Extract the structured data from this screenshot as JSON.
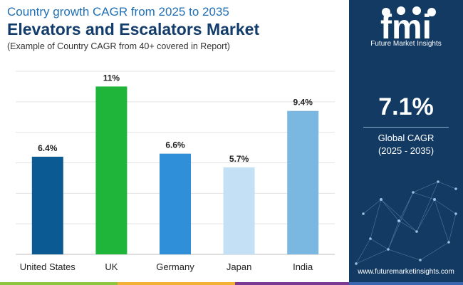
{
  "header": {
    "line1": "Country growth CAGR from 2025 to 2035",
    "line2": "Elevators and Escalators Market",
    "line3": "(Example of Country CAGR from 40+ covered in Report)"
  },
  "chart_data": {
    "type": "bar",
    "categories": [
      "United States",
      "UK",
      "Germany",
      "Japan",
      "India"
    ],
    "values": [
      6.4,
      11,
      6.6,
      5.7,
      9.4
    ],
    "labels": [
      "6.4%",
      "11%",
      "6.6%",
      "5.7%",
      "9.4%"
    ],
    "colors": [
      "#0b5a94",
      "#1eb53a",
      "#2f8fd8",
      "#c4e0f4",
      "#7ab8e2"
    ],
    "ylim": [
      0,
      12
    ],
    "grid": true
  },
  "panel": {
    "brand": "Future Market Insights",
    "cagr_value": "7.1%",
    "cagr_label": "Global CAGR",
    "cagr_period": "(2025 - 2035)",
    "website": "www.futuremarketinsights.com",
    "logo_letters": "fmi"
  },
  "colors": {
    "panel_bg": "#123a63",
    "title_blue": "#1f6fb5",
    "title_dark": "#123c6b",
    "bar_segments": [
      "#8cc63f",
      "#f2b134",
      "#7a3a93",
      "#3a66b0"
    ]
  }
}
